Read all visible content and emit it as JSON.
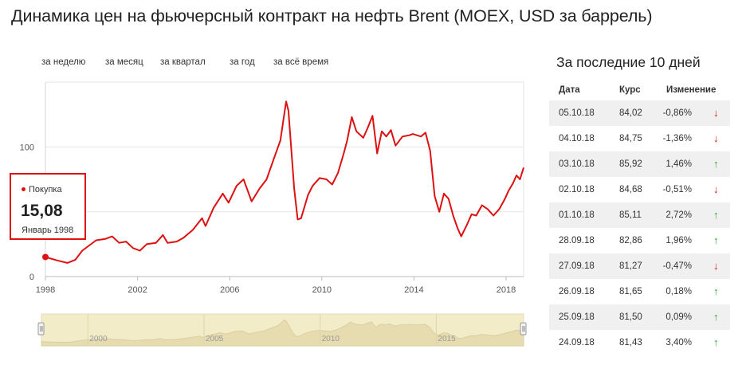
{
  "title": "Динамика цен на фьючерсный контракт на нефть Brent (MOEX, USD за баррель)",
  "range_tabs": [
    "за неделю",
    "за месяц",
    "за квартал",
    "за год",
    "за всё время"
  ],
  "tooltip": {
    "series": "Покупка",
    "value": "15,08",
    "date": "Январь 1998"
  },
  "colors": {
    "line": "#dd1111",
    "up": "#22aa22",
    "down": "#dd1111",
    "navigator_fill": "#f3ecc9",
    "navigator_line": "#d9cfa2"
  },
  "chart_data": {
    "type": "line",
    "x_ticks": [
      "1998",
      "2002",
      "2006",
      "2010",
      "2014",
      "2018"
    ],
    "y_ticks": [
      "0",
      "100"
    ],
    "ylim": [
      0,
      150
    ],
    "grid": true,
    "series": [
      {
        "name": "Покупка",
        "points": [
          [
            1998.0,
            15.08
          ],
          [
            1998.5,
            12.5
          ],
          [
            1998.95,
            10.5
          ],
          [
            1999.3,
            13
          ],
          [
            1999.6,
            20
          ],
          [
            1999.9,
            24
          ],
          [
            2000.2,
            28
          ],
          [
            2000.6,
            29
          ],
          [
            2000.9,
            31
          ],
          [
            2001.2,
            26
          ],
          [
            2001.5,
            27
          ],
          [
            2001.8,
            22
          ],
          [
            2002.1,
            20
          ],
          [
            2002.4,
            25
          ],
          [
            2002.8,
            26
          ],
          [
            2003.1,
            32
          ],
          [
            2003.3,
            26
          ],
          [
            2003.7,
            27
          ],
          [
            2004.0,
            30
          ],
          [
            2004.4,
            36
          ],
          [
            2004.8,
            45
          ],
          [
            2004.95,
            39
          ],
          [
            2005.3,
            53
          ],
          [
            2005.7,
            64
          ],
          [
            2005.95,
            57
          ],
          [
            2006.3,
            70
          ],
          [
            2006.6,
            75
          ],
          [
            2006.95,
            58
          ],
          [
            2007.3,
            68
          ],
          [
            2007.6,
            75
          ],
          [
            2007.9,
            90
          ],
          [
            2008.2,
            105
          ],
          [
            2008.45,
            135
          ],
          [
            2008.55,
            128
          ],
          [
            2008.8,
            68
          ],
          [
            2008.95,
            44
          ],
          [
            2009.1,
            45
          ],
          [
            2009.4,
            63
          ],
          [
            2009.6,
            70
          ],
          [
            2009.9,
            76
          ],
          [
            2010.2,
            75
          ],
          [
            2010.45,
            71
          ],
          [
            2010.7,
            80
          ],
          [
            2010.95,
            95
          ],
          [
            2011.1,
            105
          ],
          [
            2011.3,
            123
          ],
          [
            2011.5,
            112
          ],
          [
            2011.8,
            107
          ],
          [
            2012.0,
            115
          ],
          [
            2012.2,
            124
          ],
          [
            2012.4,
            95
          ],
          [
            2012.6,
            112
          ],
          [
            2012.8,
            108
          ],
          [
            2013.0,
            113
          ],
          [
            2013.2,
            101
          ],
          [
            2013.5,
            108
          ],
          [
            2013.8,
            109
          ],
          [
            2013.95,
            110
          ],
          [
            2014.3,
            108
          ],
          [
            2014.5,
            111
          ],
          [
            2014.7,
            97
          ],
          [
            2014.9,
            62
          ],
          [
            2015.1,
            50
          ],
          [
            2015.3,
            64
          ],
          [
            2015.5,
            60
          ],
          [
            2015.7,
            47
          ],
          [
            2015.9,
            37
          ],
          [
            2016.05,
            31
          ],
          [
            2016.3,
            40
          ],
          [
            2016.5,
            48
          ],
          [
            2016.7,
            47
          ],
          [
            2016.95,
            55
          ],
          [
            2017.2,
            52
          ],
          [
            2017.45,
            47
          ],
          [
            2017.7,
            52
          ],
          [
            2017.95,
            60
          ],
          [
            2018.1,
            66
          ],
          [
            2018.3,
            72
          ],
          [
            2018.45,
            78
          ],
          [
            2018.6,
            75
          ],
          [
            2018.76,
            84.02
          ]
        ]
      }
    ],
    "navigator": {
      "x_ticks": [
        "2000",
        "2005",
        "2010",
        "2015"
      ]
    }
  },
  "table": {
    "title": "За последние 10 дней",
    "headers": [
      "Дата",
      "Курс",
      "Изменение"
    ],
    "rows": [
      {
        "date": "05.10.18",
        "rate": "84,02",
        "change": "-0,86%",
        "dir": "down"
      },
      {
        "date": "04.10.18",
        "rate": "84,75",
        "change": "-1,36%",
        "dir": "down"
      },
      {
        "date": "03.10.18",
        "rate": "85,92",
        "change": "1,46%",
        "dir": "up"
      },
      {
        "date": "02.10.18",
        "rate": "84,68",
        "change": "-0,51%",
        "dir": "down"
      },
      {
        "date": "01.10.18",
        "rate": "85,11",
        "change": "2,72%",
        "dir": "up"
      },
      {
        "date": "28.09.18",
        "rate": "82,86",
        "change": "1,96%",
        "dir": "up"
      },
      {
        "date": "27.09.18",
        "rate": "81,27",
        "change": "-0,47%",
        "dir": "down"
      },
      {
        "date": "26.09.18",
        "rate": "81,65",
        "change": "0,18%",
        "dir": "up"
      },
      {
        "date": "25.09.18",
        "rate": "81,50",
        "change": "0,09%",
        "dir": "up"
      },
      {
        "date": "24.09.18",
        "rate": "81,43",
        "change": "3,40%",
        "dir": "up"
      }
    ]
  }
}
